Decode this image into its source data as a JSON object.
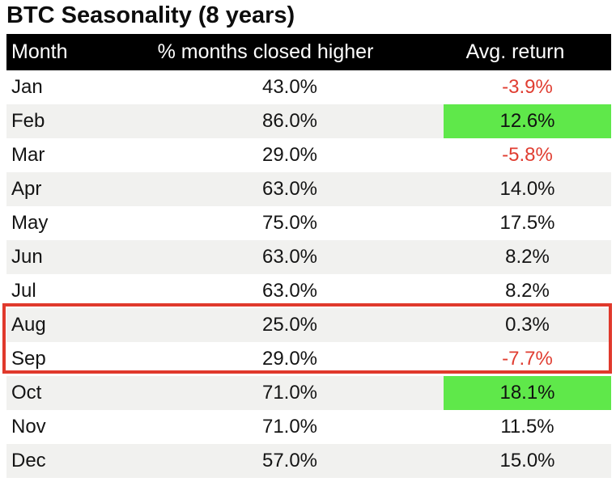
{
  "title": "BTC Seasonality (8 years)",
  "table": {
    "columns": [
      "Month",
      "% months closed higher",
      "Avg. return"
    ],
    "rows": [
      {
        "month": "Jan",
        "closed_higher": "43.0%",
        "avg_return": "-3.9%",
        "highlight": false,
        "boxed": false
      },
      {
        "month": "Feb",
        "closed_higher": "86.0%",
        "avg_return": "12.6%",
        "highlight": true,
        "boxed": false
      },
      {
        "month": "Mar",
        "closed_higher": "29.0%",
        "avg_return": "-5.8%",
        "highlight": false,
        "boxed": false
      },
      {
        "month": "Apr",
        "closed_higher": "63.0%",
        "avg_return": "14.0%",
        "highlight": false,
        "boxed": false
      },
      {
        "month": "May",
        "closed_higher": "75.0%",
        "avg_return": "17.5%",
        "highlight": false,
        "boxed": false
      },
      {
        "month": "Jun",
        "closed_higher": "63.0%",
        "avg_return": "8.2%",
        "highlight": false,
        "boxed": false
      },
      {
        "month": "Jul",
        "closed_higher": "63.0%",
        "avg_return": "8.2%",
        "highlight": false,
        "boxed": false
      },
      {
        "month": "Aug",
        "closed_higher": "25.0%",
        "avg_return": "0.3%",
        "highlight": false,
        "boxed": true
      },
      {
        "month": "Sep",
        "closed_higher": "29.0%",
        "avg_return": "-7.7%",
        "highlight": false,
        "boxed": true
      },
      {
        "month": "Oct",
        "closed_higher": "71.0%",
        "avg_return": "18.1%",
        "highlight": true,
        "boxed": false
      },
      {
        "month": "Nov",
        "closed_higher": "71.0%",
        "avg_return": "11.5%",
        "highlight": false,
        "boxed": false
      },
      {
        "month": "Dec",
        "closed_higher": "57.0%",
        "avg_return": "15.0%",
        "highlight": false,
        "boxed": false
      }
    ],
    "boxed_months": [
      "Aug",
      "Sep"
    ],
    "green_highlight_months": [
      "Feb",
      "Oct"
    ]
  },
  "colors": {
    "header_bg": "#000000",
    "header_text": "#ffffff",
    "body_text": "#141414",
    "row_stripe": "#f1f1ef",
    "negative_text": "#e03d31",
    "highlight_green": "#5fe84a",
    "box_border": "#e0392c"
  },
  "chart_data": {
    "type": "table",
    "title": "BTC Seasonality (8 years)",
    "columns": [
      "Month",
      "% months closed higher",
      "Avg. return"
    ],
    "categories": [
      "Jan",
      "Feb",
      "Mar",
      "Apr",
      "May",
      "Jun",
      "Jul",
      "Aug",
      "Sep",
      "Oct",
      "Nov",
      "Dec"
    ],
    "series": [
      {
        "name": "% months closed higher",
        "values": [
          43.0,
          86.0,
          29.0,
          63.0,
          75.0,
          63.0,
          63.0,
          25.0,
          29.0,
          71.0,
          71.0,
          57.0
        ]
      },
      {
        "name": "Avg. return",
        "values": [
          -3.9,
          12.6,
          -5.8,
          14.0,
          17.5,
          8.2,
          8.2,
          0.3,
          -7.7,
          18.1,
          11.5,
          15.0
        ]
      }
    ],
    "annotations": [
      "Aug and Sep rows outlined with red box",
      "Feb (12.6%) and Oct (18.1%) Avg. return cells highlighted green",
      "Negative Avg. return values shown in red text"
    ],
    "layout": {
      "striped_rows": true,
      "header_style": "black-bar"
    }
  }
}
